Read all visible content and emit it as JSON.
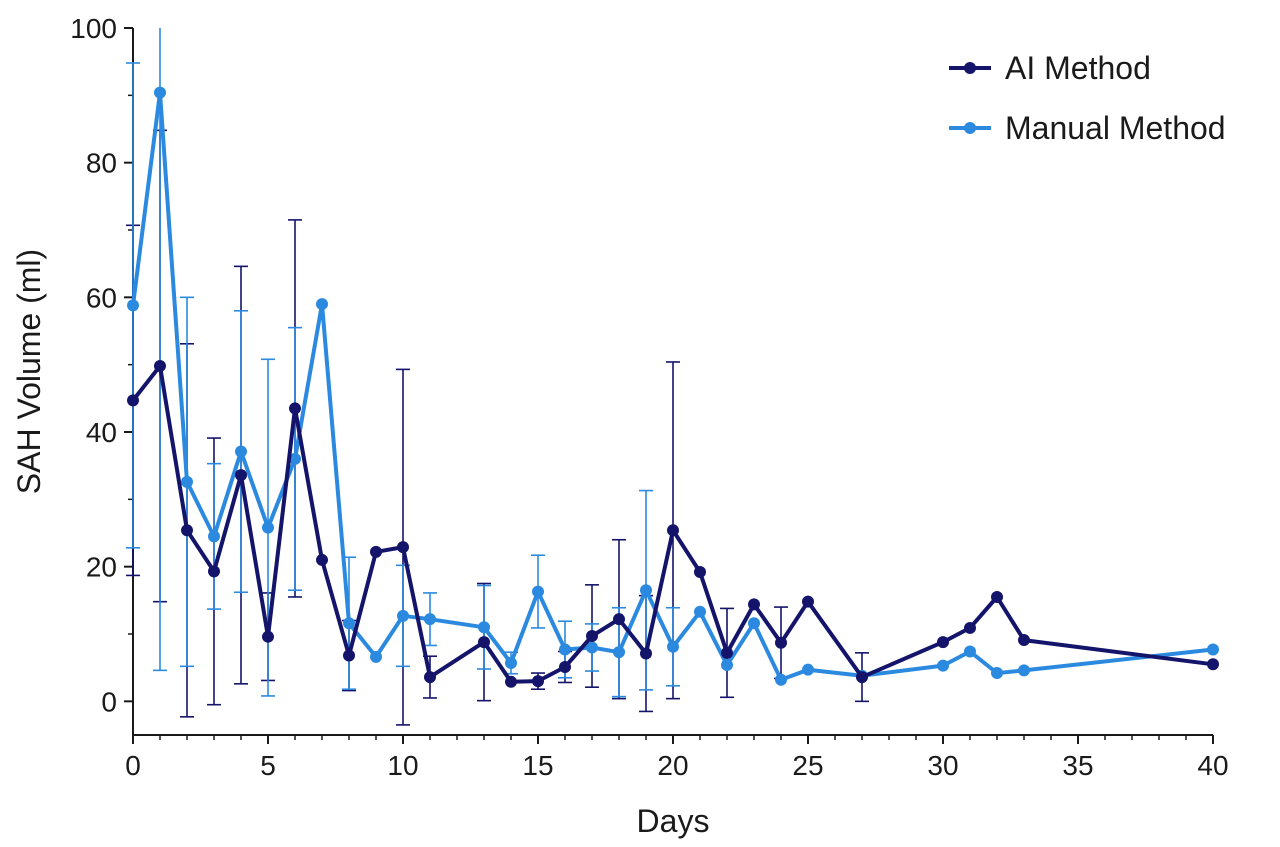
{
  "chart_data": {
    "type": "line",
    "xlabel": "Days",
    "ylabel": "SAH Volume (ml)",
    "xlim": [
      0,
      40
    ],
    "ylim": [
      -5,
      100
    ],
    "x_ticks": [
      0,
      5,
      10,
      15,
      20,
      25,
      30,
      35,
      40
    ],
    "y_ticks": [
      0,
      20,
      40,
      60,
      80,
      100
    ],
    "grid": false,
    "legend_position": "top-right",
    "series": [
      {
        "name": "AI Method",
        "color": "#14146b",
        "points": [
          {
            "x": 0,
            "y": 44.7,
            "err": 26
          },
          {
            "x": 1,
            "y": 49.8,
            "err": 35
          },
          {
            "x": 2,
            "y": 25.4,
            "err": 27.7
          },
          {
            "x": 3,
            "y": 19.3,
            "err": 19.8
          },
          {
            "x": 4,
            "y": 33.6,
            "err": 31
          },
          {
            "x": 5,
            "y": 9.6,
            "err": 6.5
          },
          {
            "x": 6,
            "y": 43.5,
            "err": 28
          },
          {
            "x": 7,
            "y": 21.0
          },
          {
            "x": 8,
            "y": 6.8,
            "err": 5.2
          },
          {
            "x": 9,
            "y": 22.2
          },
          {
            "x": 10,
            "y": 22.9,
            "err": 26.4
          },
          {
            "x": 11,
            "y": 3.6,
            "err": 3.1
          },
          {
            "x": 13,
            "y": 8.8,
            "err": 8.7
          },
          {
            "x": 14,
            "y": 2.9
          },
          {
            "x": 15,
            "y": 3.0,
            "err": 1.2
          },
          {
            "x": 16,
            "y": 5.1,
            "err": 2.3
          },
          {
            "x": 17,
            "y": 9.7,
            "err": 7.6
          },
          {
            "x": 18,
            "y": 12.2,
            "err": 11.8
          },
          {
            "x": 19,
            "y": 7.1,
            "err": 8.6
          },
          {
            "x": 20,
            "y": 25.4,
            "err": 25
          },
          {
            "x": 21,
            "y": 19.2
          },
          {
            "x": 22,
            "y": 7.2,
            "err": 6.6
          },
          {
            "x": 23,
            "y": 14.4
          },
          {
            "x": 24,
            "y": 8.7,
            "err": 5.3
          },
          {
            "x": 25,
            "y": 14.8
          },
          {
            "x": 27,
            "y": 3.6,
            "err": 3.6
          },
          {
            "x": 30,
            "y": 8.8
          },
          {
            "x": 31,
            "y": 10.9
          },
          {
            "x": 32,
            "y": 15.5
          },
          {
            "x": 33,
            "y": 9.1
          },
          {
            "x": 40,
            "y": 5.5
          }
        ]
      },
      {
        "name": "Manual Method",
        "color": "#2b8ae0",
        "points": [
          {
            "x": 0,
            "y": 58.8,
            "err": 36
          },
          {
            "x": 1,
            "y": 90.4,
            "err": 85.8
          },
          {
            "x": 2,
            "y": 32.6,
            "err": 27.4
          },
          {
            "x": 3,
            "y": 24.5,
            "err": 10.8
          },
          {
            "x": 4,
            "y": 37.1,
            "err": 20.9
          },
          {
            "x": 5,
            "y": 25.8,
            "err": 25
          },
          {
            "x": 6,
            "y": 36.0,
            "err": 19.5
          },
          {
            "x": 7,
            "y": 59.0
          },
          {
            "x": 8,
            "y": 11.6,
            "err": 9.8
          },
          {
            "x": 9,
            "y": 6.6
          },
          {
            "x": 10,
            "y": 12.7,
            "err": 7.5
          },
          {
            "x": 11,
            "y": 12.2,
            "err": 3.9
          },
          {
            "x": 13,
            "y": 11.0,
            "err": 6.2
          },
          {
            "x": 14,
            "y": 5.7,
            "err": 1.6
          },
          {
            "x": 15,
            "y": 16.3,
            "err": 5.4
          },
          {
            "x": 16,
            "y": 7.7,
            "err": 4.2
          },
          {
            "x": 17,
            "y": 8.0,
            "err": 3.5
          },
          {
            "x": 18,
            "y": 7.3,
            "err": 6.6
          },
          {
            "x": 19,
            "y": 16.5,
            "err": 14.8
          },
          {
            "x": 20,
            "y": 8.1,
            "err": 5.8
          },
          {
            "x": 21,
            "y": 13.3
          },
          {
            "x": 22,
            "y": 5.4
          },
          {
            "x": 23,
            "y": 11.6
          },
          {
            "x": 24,
            "y": 3.2
          },
          {
            "x": 25,
            "y": 4.7
          },
          {
            "x": 27,
            "y": 3.8
          },
          {
            "x": 30,
            "y": 5.3
          },
          {
            "x": 31,
            "y": 7.4
          },
          {
            "x": 32,
            "y": 4.2
          },
          {
            "x": 33,
            "y": 4.6
          },
          {
            "x": 40,
            "y": 7.7
          }
        ]
      }
    ]
  }
}
